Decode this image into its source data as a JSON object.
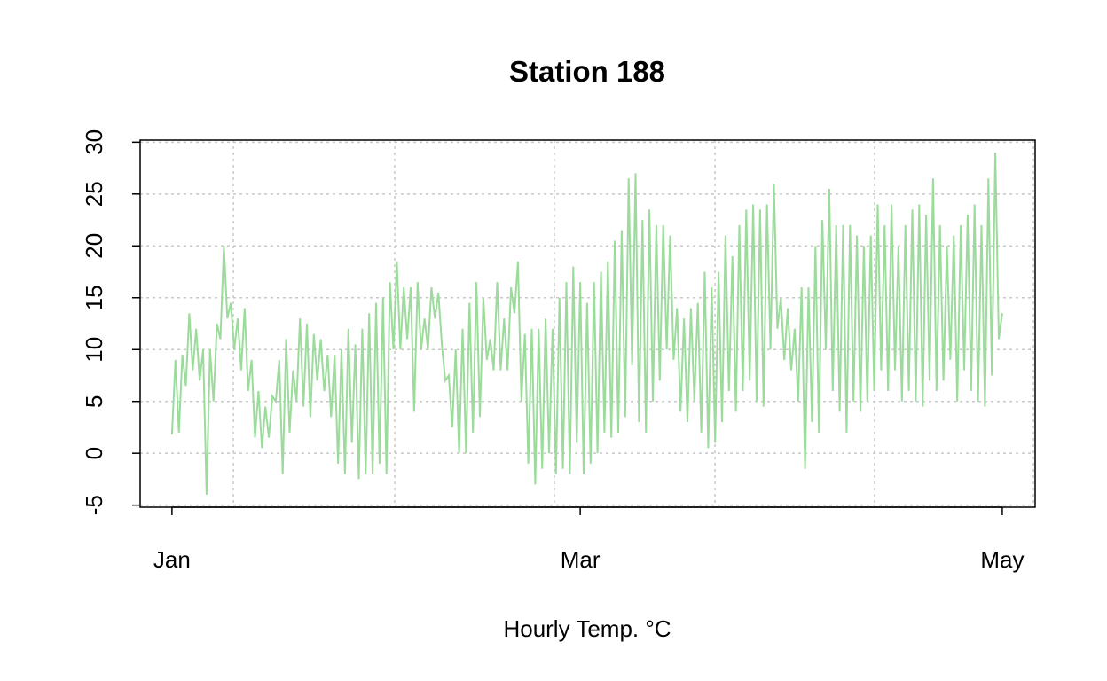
{
  "chart_data": {
    "type": "line",
    "title": "Station 188",
    "x_label": "Hourly Temp. °C",
    "color": "#9CDB9C",
    "grid": true,
    "values": [
      1.8,
      9,
      2,
      9.5,
      6.5,
      13.5,
      8,
      12,
      7,
      10,
      -4,
      10,
      5,
      12.5,
      11,
      20,
      13,
      14.5,
      10,
      13,
      8,
      14,
      6,
      9,
      1.5,
      6,
      0.5,
      4.5,
      1.5,
      5.5,
      5,
      9,
      -2,
      11,
      2,
      8,
      5,
      13,
      4.5,
      12.5,
      3.5,
      11.5,
      7,
      11,
      6,
      9.5,
      3.5,
      9.5,
      -1,
      10,
      -2,
      12,
      1,
      10.5,
      -2.5,
      12,
      -2,
      13.5,
      -2,
      14.5,
      -1,
      15,
      -2,
      16.5,
      10,
      18.5,
      10,
      16,
      11,
      16,
      4,
      16.5,
      10,
      13,
      10,
      16,
      13,
      15.5,
      10.5,
      7,
      7.5,
      2.5,
      10,
      0,
      12,
      0,
      14.5,
      2,
      16.5,
      3.5,
      15,
      9,
      11,
      8,
      16.5,
      8,
      13,
      8,
      16,
      13.5,
      18.5,
      5,
      11.5,
      -1,
      12,
      -3,
      12,
      -1.5,
      13,
      0,
      12,
      -2,
      15,
      -1.5,
      16.5,
      -2,
      18,
      1,
      16.5,
      -2,
      14.5,
      -1,
      16.5,
      0,
      17.5,
      2,
      18.5,
      1.5,
      20.5,
      2,
      21.5,
      3.5,
      26.5,
      8.5,
      27,
      3,
      22.5,
      2,
      23.5,
      5,
      22,
      7,
      22,
      10,
      21,
      9,
      14,
      4,
      13,
      3,
      14,
      5,
      14.5,
      2,
      17.5,
      0.5,
      16,
      1,
      17.5,
      3,
      21,
      6,
      19,
      4,
      22,
      6,
      23.5,
      7,
      24,
      5,
      23.5,
      4.5,
      24,
      10,
      26,
      12,
      15,
      9,
      14,
      8,
      12,
      5,
      16,
      -1.5,
      16,
      3,
      20,
      2,
      22.5,
      10,
      25.5,
      6,
      22,
      4,
      22,
      2,
      22,
      5,
      21,
      4,
      20,
      5,
      21,
      6,
      24,
      8,
      22,
      6,
      24,
      8,
      20,
      5,
      22,
      6,
      23.5,
      5,
      24,
      4.5,
      23,
      7,
      26.5,
      6,
      22,
      7,
      20,
      9,
      21,
      5,
      22,
      8,
      23,
      6,
      24,
      5,
      22,
      4.5,
      26.5,
      7.5,
      29,
      11,
      13.5
    ],
    "xlim": [
      -9.2,
      249.5
    ],
    "xticks": [
      {
        "value": 0,
        "label": "Jan"
      },
      {
        "value": 118,
        "label": "Mar"
      },
      {
        "value": 240,
        "label": "May"
      }
    ],
    "ylim": [
      -5.2,
      30.2
    ],
    "yticks": [
      -5,
      0,
      5,
      10,
      15,
      20,
      25,
      30
    ]
  }
}
